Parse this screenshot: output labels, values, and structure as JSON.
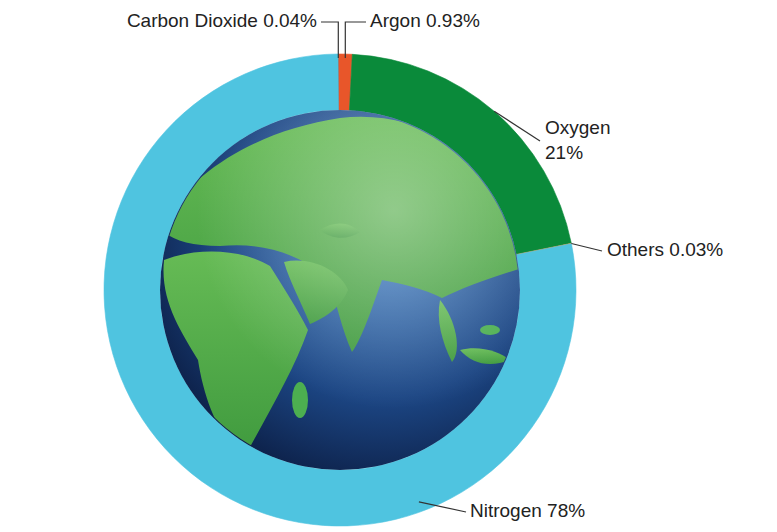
{
  "chart_data": {
    "type": "pie",
    "categories": [
      "Carbon Dioxide",
      "Argon",
      "Oxygen",
      "Others",
      "Nitrogen"
    ],
    "values": [
      0.04,
      0.93,
      21,
      0.03,
      78
    ],
    "value_labels": [
      "0.04%",
      "0.93%",
      "21%",
      "0.03%",
      "78%"
    ],
    "colors": [
      "#2f5b8a",
      "#e8562a",
      "#0a8a3a",
      "#c8a060",
      "#4fc4e0"
    ],
    "data_labels": true
  }
}
